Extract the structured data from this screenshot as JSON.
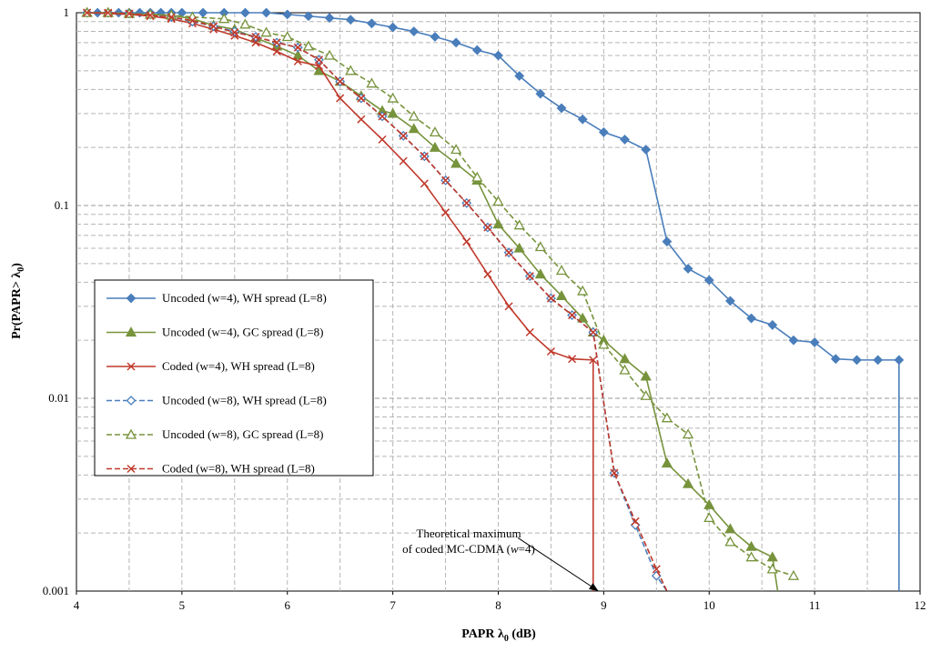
{
  "chart_data": {
    "type": "line",
    "title": "",
    "xlabel": "PAPR λ",
    "xlabel_sub": "0",
    "xlabel_unit": " (dB)",
    "ylabel": "Pr(PAPR> λ",
    "ylabel_sub": "0",
    "ylabel_close": ")",
    "xlim": [
      4,
      12
    ],
    "ylim": [
      0.001,
      1
    ],
    "yscale": "log",
    "grid": "major and minor dashed",
    "legend_placement": "middle-left",
    "x_ticks": [
      "4",
      "5",
      "6",
      "7",
      "8",
      "9",
      "10",
      "11",
      "12"
    ],
    "y_ticks": [
      "0.001",
      "0.01",
      "0.1",
      "1"
    ],
    "series": [
      {
        "name": "Uncoded  (w=4), WH spread (L=8)",
        "color": "#4a7ebb",
        "marker": "diamond",
        "fill": true,
        "dash": false,
        "points": [
          [
            4.1,
            1
          ],
          [
            4.2,
            1
          ],
          [
            4.3,
            1
          ],
          [
            4.4,
            1
          ],
          [
            4.5,
            1
          ],
          [
            4.6,
            1
          ],
          [
            4.7,
            1
          ],
          [
            4.8,
            1
          ],
          [
            4.9,
            1
          ],
          [
            5.0,
            1
          ],
          [
            5.2,
            1
          ],
          [
            5.4,
            1
          ],
          [
            5.6,
            1
          ],
          [
            5.8,
            1
          ],
          [
            6.0,
            0.98
          ],
          [
            6.2,
            0.96
          ],
          [
            6.4,
            0.94
          ],
          [
            6.6,
            0.92
          ],
          [
            6.8,
            0.88
          ],
          [
            7.0,
            0.84
          ],
          [
            7.2,
            0.8
          ],
          [
            7.4,
            0.75
          ],
          [
            7.6,
            0.7
          ],
          [
            7.8,
            0.64
          ],
          [
            8.0,
            0.6
          ],
          [
            8.2,
            0.47
          ],
          [
            8.4,
            0.38
          ],
          [
            8.6,
            0.32
          ],
          [
            8.8,
            0.28
          ],
          [
            9.0,
            0.24
          ],
          [
            9.2,
            0.22
          ],
          [
            9.4,
            0.195
          ],
          [
            9.6,
            0.065
          ],
          [
            9.8,
            0.047
          ],
          [
            10.0,
            0.041
          ],
          [
            10.2,
            0.032
          ],
          [
            10.4,
            0.026
          ],
          [
            10.6,
            0.024
          ],
          [
            10.8,
            0.02
          ],
          [
            11.0,
            0.0195
          ],
          [
            11.2,
            0.016
          ],
          [
            11.4,
            0.0158
          ],
          [
            11.6,
            0.0158
          ],
          [
            11.8,
            0.0158
          ],
          [
            11.8,
            0.001
          ]
        ]
      },
      {
        "name": "Uncoded  (w=4), GC spread (L=8)",
        "color": "#77933c",
        "marker": "triangle",
        "fill": true,
        "dash": false,
        "points": [
          [
            4.1,
            1
          ],
          [
            4.3,
            1
          ],
          [
            4.5,
            0.99
          ],
          [
            4.7,
            0.98
          ],
          [
            4.9,
            0.97
          ],
          [
            5.1,
            0.93
          ],
          [
            5.3,
            0.86
          ],
          [
            5.5,
            0.82
          ],
          [
            5.7,
            0.74
          ],
          [
            5.9,
            0.67
          ],
          [
            6.1,
            0.6
          ],
          [
            6.3,
            0.5
          ],
          [
            6.5,
            0.44
          ],
          [
            6.7,
            0.37
          ],
          [
            6.9,
            0.31
          ],
          [
            7.0,
            0.3
          ],
          [
            7.2,
            0.25
          ],
          [
            7.4,
            0.2
          ],
          [
            7.6,
            0.165
          ],
          [
            7.8,
            0.135
          ],
          [
            8.0,
            0.08
          ],
          [
            8.2,
            0.06
          ],
          [
            8.4,
            0.044
          ],
          [
            8.6,
            0.034
          ],
          [
            8.8,
            0.026
          ],
          [
            8.9,
            0.022
          ],
          [
            9.0,
            0.02
          ],
          [
            9.2,
            0.016
          ],
          [
            9.4,
            0.013
          ],
          [
            9.6,
            0.0046
          ],
          [
            9.8,
            0.0036
          ],
          [
            10.0,
            0.0028
          ],
          [
            10.2,
            0.0021
          ],
          [
            10.4,
            0.0017
          ],
          [
            10.6,
            0.0015
          ],
          [
            10.65,
            0.001
          ]
        ]
      },
      {
        "name": "Coded  (w=4), WH spread (L=8)",
        "color": "#c0392b",
        "marker": "x",
        "fill": false,
        "dash": false,
        "points": [
          [
            4.1,
            1
          ],
          [
            4.3,
            0.99
          ],
          [
            4.5,
            0.98
          ],
          [
            4.7,
            0.96
          ],
          [
            4.9,
            0.93
          ],
          [
            5.1,
            0.88
          ],
          [
            5.3,
            0.82
          ],
          [
            5.5,
            0.76
          ],
          [
            5.7,
            0.7
          ],
          [
            5.9,
            0.63
          ],
          [
            6.1,
            0.56
          ],
          [
            6.3,
            0.53
          ],
          [
            6.5,
            0.36
          ],
          [
            6.7,
            0.28
          ],
          [
            6.9,
            0.22
          ],
          [
            7.1,
            0.17
          ],
          [
            7.3,
            0.13
          ],
          [
            7.5,
            0.092
          ],
          [
            7.7,
            0.065
          ],
          [
            7.9,
            0.044
          ],
          [
            8.1,
            0.03
          ],
          [
            8.3,
            0.022
          ],
          [
            8.5,
            0.0175
          ],
          [
            8.7,
            0.016
          ],
          [
            8.9,
            0.0158
          ],
          [
            8.9,
            0.001
          ]
        ]
      },
      {
        "name": "Uncoded  (w=8), WH spread (L=8)",
        "color": "#4a7ebb",
        "marker": "diamond",
        "fill": false,
        "dash": true,
        "points": [
          [
            4.1,
            1
          ],
          [
            4.3,
            1
          ],
          [
            4.5,
            0.99
          ],
          [
            4.7,
            0.98
          ],
          [
            4.9,
            0.95
          ],
          [
            5.1,
            0.9
          ],
          [
            5.3,
            0.85
          ],
          [
            5.5,
            0.8
          ],
          [
            5.7,
            0.75
          ],
          [
            5.9,
            0.7
          ],
          [
            6.1,
            0.66
          ],
          [
            6.3,
            0.57
          ],
          [
            6.5,
            0.44
          ],
          [
            6.7,
            0.36
          ],
          [
            6.9,
            0.29
          ],
          [
            7.1,
            0.23
          ],
          [
            7.3,
            0.18
          ],
          [
            7.5,
            0.135
          ],
          [
            7.7,
            0.103
          ],
          [
            7.9,
            0.077
          ],
          [
            8.1,
            0.057
          ],
          [
            8.3,
            0.043
          ],
          [
            8.5,
            0.033
          ],
          [
            8.7,
            0.027
          ],
          [
            8.9,
            0.022
          ],
          [
            9.1,
            0.0041
          ],
          [
            9.3,
            0.0022
          ],
          [
            9.5,
            0.0012
          ],
          [
            9.6,
            0.001
          ]
        ]
      },
      {
        "name": "Uncoded  (w=8), GC spread (L=8)",
        "color": "#77933c",
        "marker": "triangle",
        "fill": false,
        "dash": true,
        "points": [
          [
            4.1,
            1
          ],
          [
            4.3,
            1
          ],
          [
            4.5,
            0.99
          ],
          [
            4.7,
            0.98
          ],
          [
            4.9,
            0.97
          ],
          [
            5.1,
            0.95
          ],
          [
            5.4,
            0.93
          ],
          [
            5.6,
            0.87
          ],
          [
            5.8,
            0.79
          ],
          [
            6.0,
            0.75
          ],
          [
            6.2,
            0.67
          ],
          [
            6.4,
            0.6
          ],
          [
            6.6,
            0.5
          ],
          [
            6.8,
            0.43
          ],
          [
            7.0,
            0.36
          ],
          [
            7.2,
            0.29
          ],
          [
            7.4,
            0.24
          ],
          [
            7.6,
            0.195
          ],
          [
            7.8,
            0.14
          ],
          [
            8.0,
            0.105
          ],
          [
            8.2,
            0.079
          ],
          [
            8.4,
            0.061
          ],
          [
            8.6,
            0.046
          ],
          [
            8.8,
            0.036
          ],
          [
            9.0,
            0.019
          ],
          [
            9.2,
            0.014
          ],
          [
            9.4,
            0.0103
          ],
          [
            9.6,
            0.0079
          ],
          [
            9.8,
            0.0065
          ],
          [
            10.0,
            0.0024
          ],
          [
            10.2,
            0.0018
          ],
          [
            10.4,
            0.0015
          ],
          [
            10.6,
            0.0013
          ],
          [
            10.8,
            0.0012
          ]
        ]
      },
      {
        "name": "Coded  (w=8), WH spread (L=8)",
        "color": "#c0392b",
        "marker": "x",
        "fill": false,
        "dash": true,
        "points": [
          [
            4.1,
            1
          ],
          [
            4.3,
            1
          ],
          [
            4.5,
            0.99
          ],
          [
            4.7,
            0.97
          ],
          [
            4.9,
            0.95
          ],
          [
            5.1,
            0.91
          ],
          [
            5.3,
            0.85
          ],
          [
            5.5,
            0.79
          ],
          [
            5.7,
            0.75
          ],
          [
            5.9,
            0.7
          ],
          [
            6.1,
            0.66
          ],
          [
            6.3,
            0.57
          ],
          [
            6.5,
            0.44
          ],
          [
            6.7,
            0.36
          ],
          [
            6.9,
            0.29
          ],
          [
            7.1,
            0.23
          ],
          [
            7.3,
            0.18
          ],
          [
            7.5,
            0.135
          ],
          [
            7.7,
            0.103
          ],
          [
            7.9,
            0.077
          ],
          [
            8.1,
            0.057
          ],
          [
            8.3,
            0.043
          ],
          [
            8.5,
            0.033
          ],
          [
            8.7,
            0.027
          ],
          [
            8.9,
            0.022
          ],
          [
            9.1,
            0.0041
          ],
          [
            9.3,
            0.0023
          ],
          [
            9.5,
            0.0013
          ],
          [
            9.6,
            0.001
          ]
        ]
      }
    ],
    "annotation": {
      "line1": "Theoretical maximum",
      "line2_pre": "of coded MC-CDMA (",
      "line2_var": "w",
      "line2_post": "=4)",
      "arrow_to": [
        8.95,
        0.001
      ],
      "text_anchor": [
        8.1,
        0.0022
      ]
    }
  }
}
